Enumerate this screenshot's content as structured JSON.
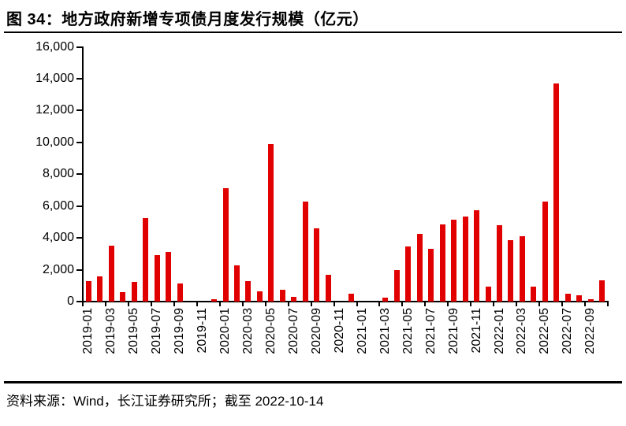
{
  "header": {
    "title": "图 34：地方政府新增专项债月度发行规模（亿元）"
  },
  "footer": {
    "source": "资料来源：Wind，长江证券研究所；截至 2022-10-14"
  },
  "colors": {
    "bar": "#e00000",
    "axis": "#000000",
    "text": "#000000"
  },
  "chart_data": {
    "type": "bar",
    "title": "地方政府新增专项债月度发行规模（亿元）",
    "xlabel": "",
    "ylabel": "",
    "ylim": [
      0,
      16000
    ],
    "grid": false,
    "legend": null,
    "bar_color": "#e00000",
    "y_ticks": [
      0,
      2000,
      4000,
      6000,
      8000,
      10000,
      12000,
      14000,
      16000
    ],
    "y_tick_labels": [
      "0",
      "2,000",
      "4,000",
      "6,000",
      "8,000",
      "10,000",
      "12,000",
      "14,000",
      "16,000"
    ],
    "x": [
      "2019-01",
      "2019-02",
      "2019-03",
      "2019-04",
      "2019-05",
      "2019-06",
      "2019-07",
      "2019-08",
      "2019-09",
      "2019-10",
      "2019-11",
      "2019-12",
      "2020-01",
      "2020-02",
      "2020-03",
      "2020-04",
      "2020-05",
      "2020-06",
      "2020-07",
      "2020-08",
      "2020-09",
      "2020-10",
      "2020-11",
      "2020-12",
      "2021-01",
      "2021-02",
      "2021-03",
      "2021-04",
      "2021-05",
      "2021-06",
      "2021-07",
      "2021-08",
      "2021-09",
      "2021-10",
      "2021-11",
      "2021-12",
      "2022-01",
      "2022-02",
      "2022-03",
      "2022-04",
      "2022-05",
      "2022-06",
      "2022-07",
      "2022-08",
      "2022-09",
      "2022-10"
    ],
    "values": [
      1300,
      1600,
      3510,
      600,
      1250,
      5230,
      2940,
      3140,
      1150,
      0,
      0,
      160,
      7100,
      2260,
      1270,
      630,
      9900,
      740,
      300,
      6270,
      4620,
      1690,
      0,
      480,
      0,
      0,
      250,
      1980,
      3470,
      4240,
      3300,
      4840,
      5160,
      5360,
      5730,
      940,
      4790,
      3850,
      4120,
      940,
      6270,
      13700,
      500,
      400,
      150,
      1350
    ],
    "x_tick_labels": [
      "2019-01",
      "2019-03",
      "2019-05",
      "2019-07",
      "2019-09",
      "2019-11",
      "2020-01",
      "2020-03",
      "2020-05",
      "2020-07",
      "2020-09",
      "2020-11",
      "2021-01",
      "2021-03",
      "2021-05",
      "2021-07",
      "2021-09",
      "2021-11",
      "2022-01",
      "2022-03",
      "2022-05",
      "2022-07",
      "2022-09"
    ]
  }
}
